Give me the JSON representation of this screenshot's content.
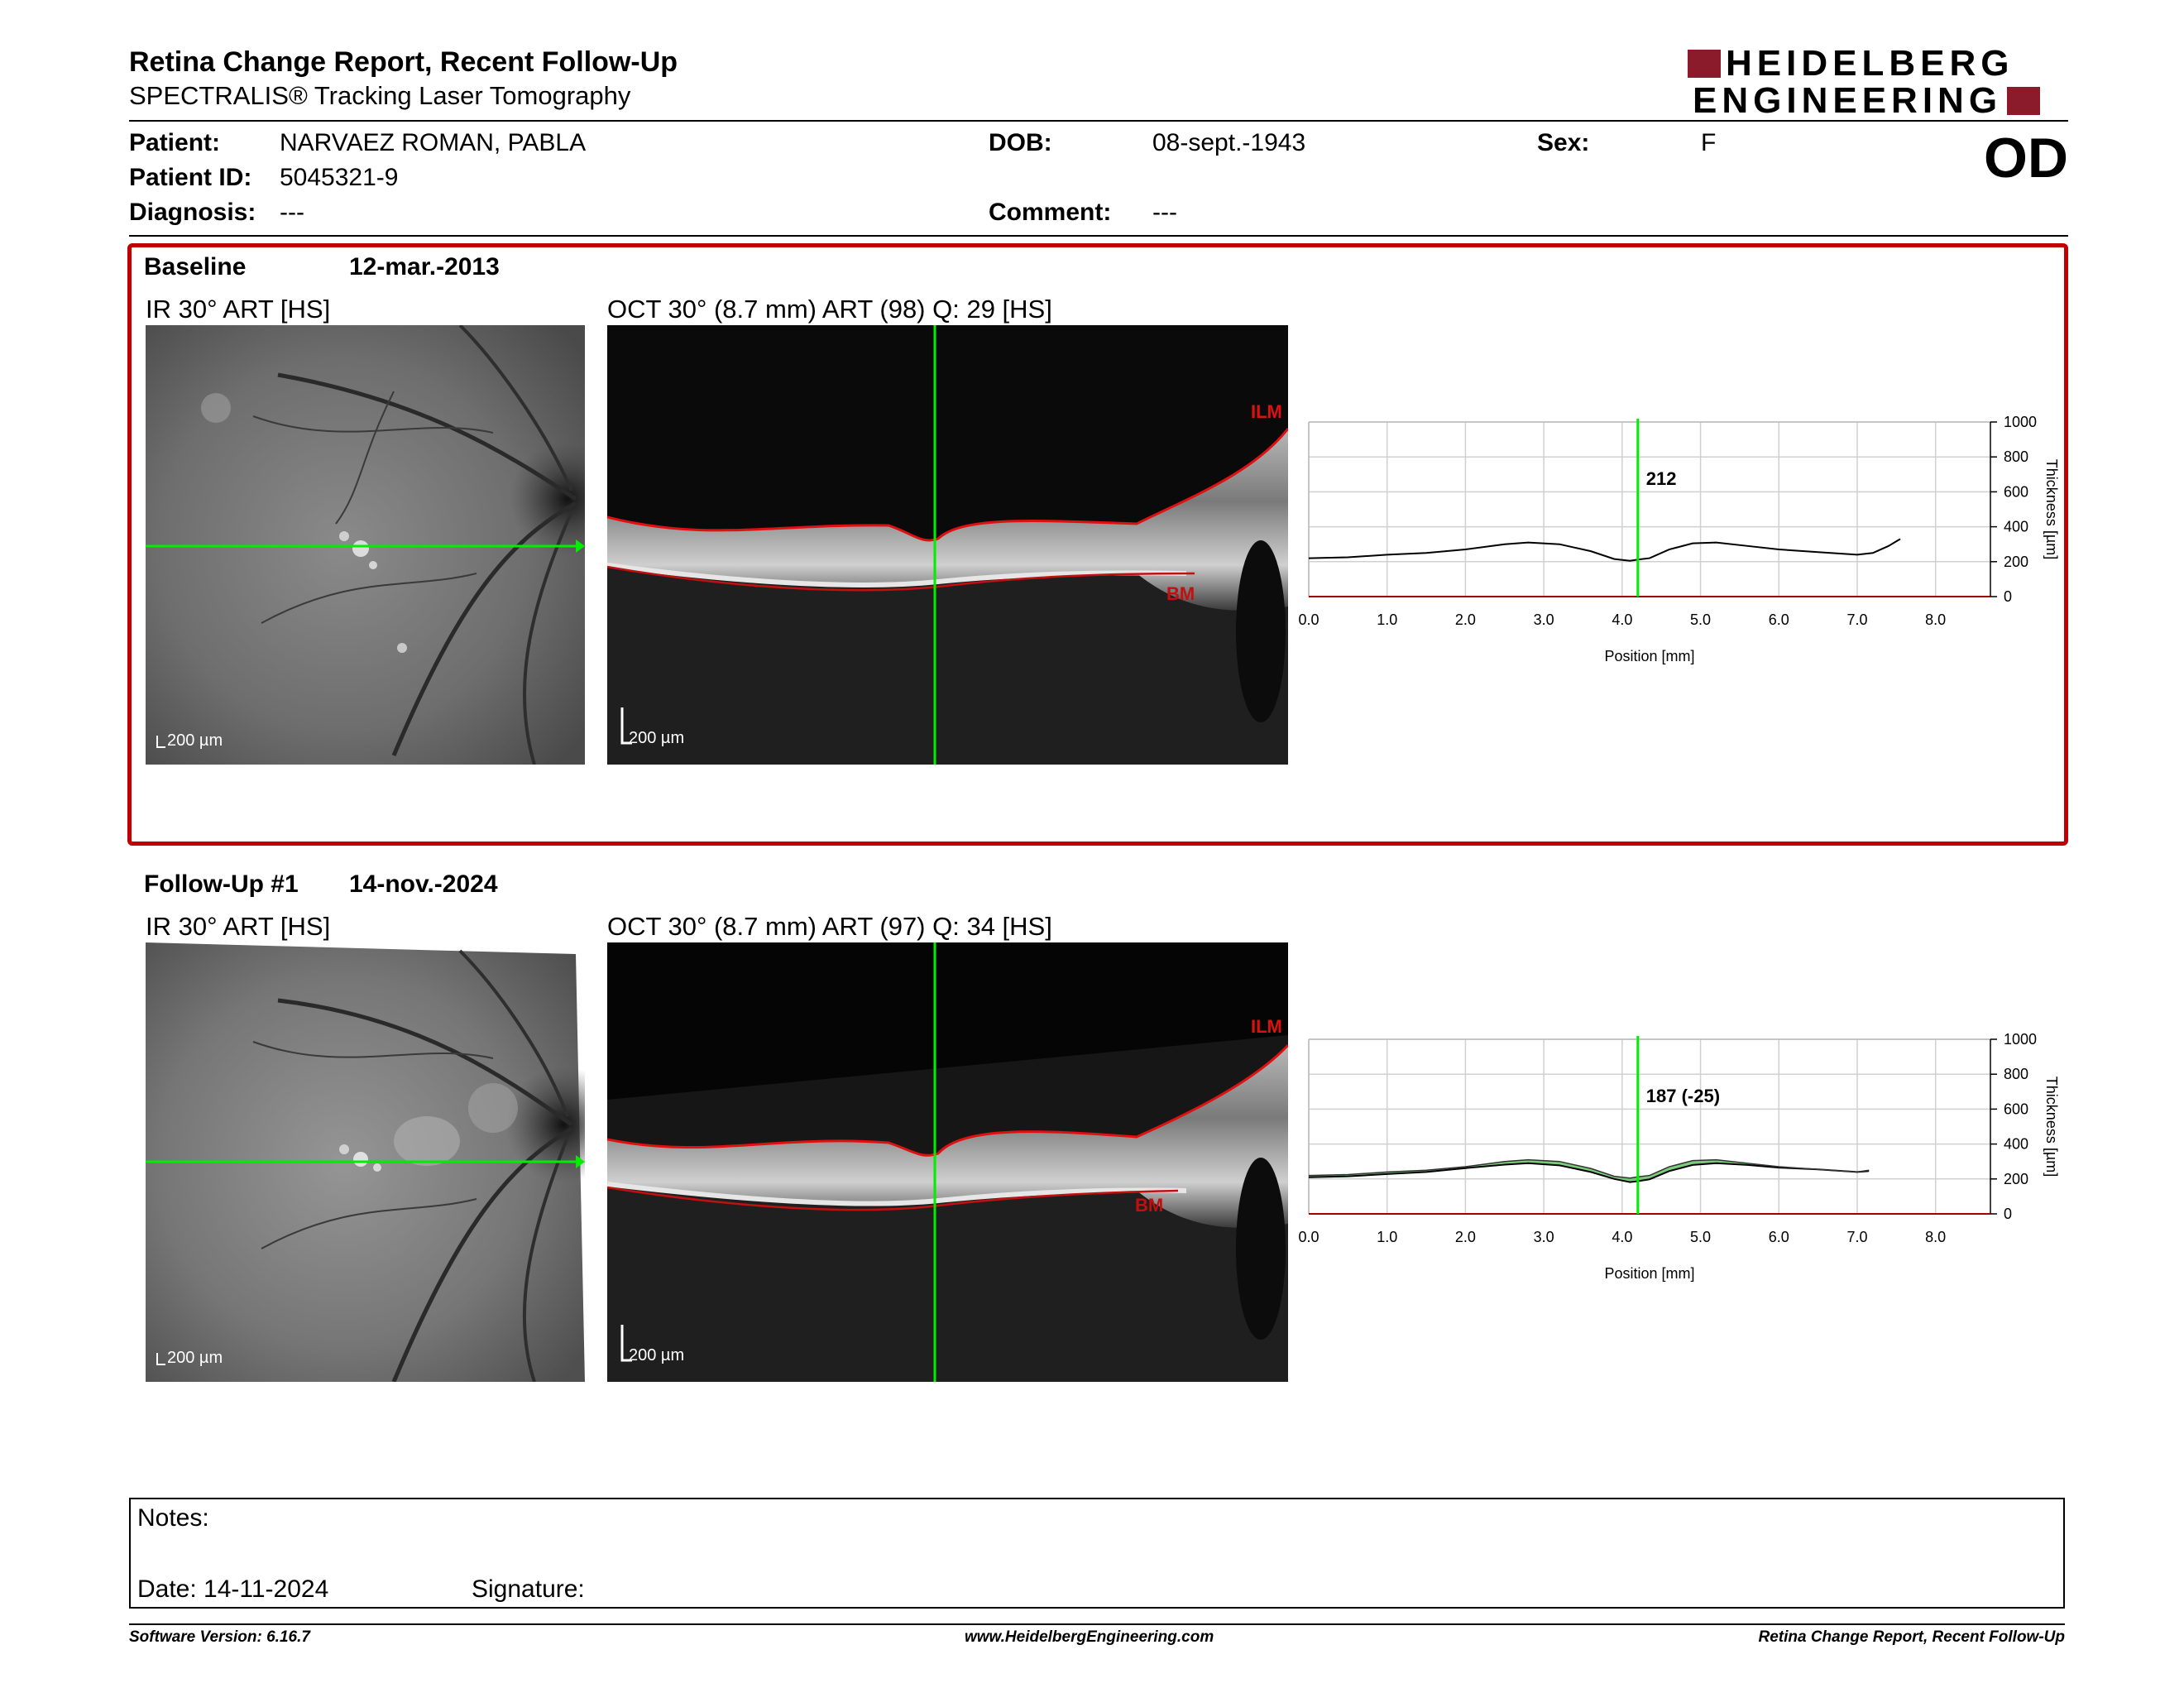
{
  "header": {
    "title": "Retina Change Report, Recent Follow-Up",
    "subtitle": "SPECTRALIS® Tracking Laser Tomography",
    "logo_line1": "HEIDELBERG",
    "logo_line2": "ENGINEERING",
    "eye": "OD"
  },
  "patient": {
    "patient_label": "Patient:",
    "patient_value": "NARVAEZ ROMAN, PABLA",
    "id_label": "Patient ID:",
    "id_value": "5045321-9",
    "diagnosis_label": "Diagnosis:",
    "diagnosis_value": "---",
    "dob_label": "DOB:",
    "dob_value": "08-sept.-1943",
    "comment_label": "Comment:",
    "comment_value": "---",
    "sex_label": "Sex:",
    "sex_value": "F"
  },
  "baseline": {
    "label": "Baseline",
    "date": "12-mar.-2013",
    "ir_title": "IR 30° ART [HS]",
    "oct_title": "OCT 30° (8.7 mm) ART (98) Q: 29 [HS]",
    "ir_scale": "200 µm",
    "oct_scale": "200 µm",
    "ilm": "ILM",
    "bm": "BM"
  },
  "followup": {
    "label": "Follow-Up #1",
    "date": "14-nov.-2024",
    "ir_title": "IR 30° ART [HS]",
    "oct_title": "OCT 30° (8.7 mm) ART (97) Q: 34 [HS]",
    "ir_scale": "200 µm",
    "oct_scale": "200 µm",
    "ilm": "ILM",
    "bm": "BM"
  },
  "notes": {
    "notes_label": "Notes:",
    "date_label": "Date: 14-11-2024",
    "signature_label": "Signature:"
  },
  "footer": {
    "left": "Software Version: 6.16.7",
    "center": "www.HeidelbergEngineering.com",
    "right": "Retina Change Report, Recent Follow-Up"
  },
  "colors": {
    "accent_red": "#c00000",
    "logo_red": "#8b1a2b",
    "scan_line": "#00ee00",
    "diff_fill": "#4cbf4c"
  },
  "chart_data": [
    {
      "type": "line",
      "xlabel": "Position [mm]",
      "ylabel": "Thickness [µm]",
      "xlim": [
        0,
        8.7
      ],
      "ylim": [
        0,
        1000
      ],
      "x_ticks": [
        "0.0",
        "1.0",
        "2.0",
        "3.0",
        "4.0",
        "5.0",
        "6.0",
        "7.0",
        "8.0"
      ],
      "y_ticks": [
        "0",
        "200",
        "400",
        "600",
        "800",
        "1000"
      ],
      "grid": true,
      "marker_x": 4.2,
      "marker_label": "212",
      "series": [
        {
          "x": [
            0,
            0.5,
            1,
            1.5,
            2,
            2.5,
            2.8,
            3.2,
            3.6,
            3.9,
            4.1,
            4.2,
            4.35,
            4.6,
            4.9,
            5.2,
            5.6,
            6,
            6.5,
            7,
            7.2,
            7.4,
            7.55
          ],
          "values": [
            220,
            225,
            240,
            250,
            270,
            300,
            310,
            300,
            260,
            215,
            205,
            212,
            220,
            270,
            305,
            310,
            290,
            270,
            255,
            240,
            250,
            290,
            330
          ]
        }
      ]
    },
    {
      "type": "line",
      "xlabel": "Position [mm]",
      "ylabel": "Thickness [µm]",
      "xlim": [
        0,
        8.7
      ],
      "ylim": [
        0,
        1000
      ],
      "x_ticks": [
        "0.0",
        "1.0",
        "2.0",
        "3.0",
        "4.0",
        "5.0",
        "6.0",
        "7.0",
        "8.0"
      ],
      "y_ticks": [
        "0",
        "200",
        "400",
        "600",
        "800",
        "1000"
      ],
      "grid": true,
      "marker_x": 4.2,
      "marker_label": "187 (-25)",
      "series": [
        {
          "x": [
            0,
            0.5,
            1,
            1.5,
            2,
            2.5,
            2.8,
            3.2,
            3.6,
            3.9,
            4.1,
            4.2,
            4.35,
            4.6,
            4.9,
            5.2,
            5.6,
            6,
            6.5,
            7,
            7.15
          ],
          "values": [
            210,
            215,
            228,
            240,
            262,
            282,
            290,
            278,
            240,
            200,
            182,
            187,
            198,
            245,
            280,
            290,
            280,
            265,
            255,
            240,
            245
          ]
        },
        {
          "x": [
            0,
            0.5,
            1,
            1.5,
            2,
            2.5,
            2.8,
            3.2,
            3.6,
            3.9,
            4.1,
            4.2,
            4.35,
            4.6,
            4.9,
            5.2,
            5.6,
            6,
            6.5,
            7,
            7.15
          ],
          "values": [
            220,
            225,
            240,
            250,
            270,
            300,
            310,
            300,
            260,
            215,
            205,
            212,
            220,
            270,
            305,
            310,
            290,
            270,
            255,
            240,
            250
          ]
        }
      ]
    }
  ]
}
